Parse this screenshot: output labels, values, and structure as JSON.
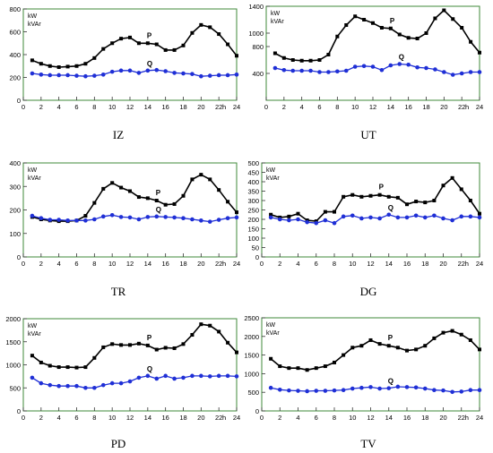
{
  "chart_data": [
    {
      "type": "line",
      "caption": "IZ",
      "yunit": [
        "kW",
        "kVAr"
      ],
      "x": [
        1,
        2,
        3,
        4,
        5,
        6,
        7,
        8,
        9,
        10,
        11,
        12,
        13,
        14,
        15,
        16,
        17,
        18,
        19,
        20,
        21,
        22,
        23,
        24
      ],
      "xticks": [
        0,
        2,
        4,
        6,
        8,
        10,
        12,
        14,
        16,
        18,
        20,
        22,
        24
      ],
      "xlim": [
        0,
        24
      ],
      "xunit": "h",
      "ylim": [
        0,
        800
      ],
      "yticks": [
        0,
        200,
        400,
        600,
        800
      ],
      "series": [
        {
          "name": "P",
          "marker": "square",
          "values": [
            350,
            320,
            300,
            290,
            295,
            300,
            320,
            370,
            450,
            500,
            540,
            550,
            500,
            500,
            490,
            440,
            440,
            480,
            590,
            660,
            640,
            580,
            490,
            390
          ]
        },
        {
          "name": "Q",
          "marker": "circle",
          "values": [
            235,
            225,
            220,
            220,
            220,
            215,
            210,
            215,
            225,
            250,
            260,
            260,
            240,
            260,
            265,
            255,
            240,
            235,
            230,
            210,
            215,
            220,
            220,
            225
          ]
        }
      ]
    },
    {
      "type": "line",
      "caption": "UT",
      "yunit": [
        "kW",
        "kVAr"
      ],
      "x": [
        1,
        2,
        3,
        4,
        5,
        6,
        7,
        8,
        9,
        10,
        11,
        12,
        13,
        14,
        15,
        16,
        17,
        18,
        19,
        20,
        21,
        22,
        23,
        24
      ],
      "xticks": [
        0,
        2,
        4,
        6,
        8,
        10,
        12,
        14,
        16,
        18,
        20,
        22,
        24
      ],
      "xlim": [
        0,
        24
      ],
      "xunit": "h",
      "ylim": [
        0,
        1400
      ],
      "yticks": [
        400,
        800,
        1000,
        1400
      ],
      "series": [
        {
          "name": "P",
          "marker": "square",
          "values": [
            700,
            630,
            600,
            590,
            590,
            600,
            680,
            950,
            1120,
            1250,
            1200,
            1150,
            1080,
            1070,
            980,
            930,
            920,
            1000,
            1220,
            1340,
            1210,
            1080,
            870,
            710
          ]
        },
        {
          "name": "Q",
          "marker": "circle",
          "values": [
            480,
            450,
            440,
            440,
            440,
            420,
            420,
            430,
            440,
            500,
            510,
            500,
            450,
            520,
            540,
            530,
            490,
            480,
            460,
            420,
            380,
            400,
            420,
            420
          ]
        }
      ]
    },
    {
      "type": "line",
      "caption": "TR",
      "yunit": [
        "kW",
        "kVAr"
      ],
      "x": [
        1,
        2,
        3,
        4,
        5,
        6,
        7,
        8,
        9,
        10,
        11,
        12,
        13,
        14,
        15,
        16,
        17,
        18,
        19,
        20,
        21,
        22,
        23,
        24
      ],
      "xticks": [
        0,
        2,
        4,
        6,
        8,
        10,
        12,
        14,
        16,
        18,
        20,
        22,
        24
      ],
      "xlim": [
        0,
        24
      ],
      "xunit": "h",
      "ylim": [
        0,
        400
      ],
      "yticks": [
        0,
        100,
        200,
        300,
        400
      ],
      "series": [
        {
          "name": "P",
          "marker": "square",
          "values": [
            170,
            160,
            155,
            152,
            152,
            155,
            175,
            230,
            290,
            315,
            295,
            280,
            255,
            250,
            240,
            222,
            225,
            260,
            330,
            350,
            330,
            285,
            235,
            190
          ]
        },
        {
          "name": "Q",
          "marker": "circle",
          "values": [
            175,
            165,
            158,
            158,
            155,
            155,
            155,
            160,
            172,
            178,
            170,
            168,
            160,
            170,
            172,
            170,
            168,
            165,
            160,
            155,
            150,
            158,
            165,
            168
          ]
        }
      ]
    },
    {
      "type": "line",
      "caption": "DG",
      "yunit": [
        "kW",
        "kVAr"
      ],
      "x": [
        1,
        2,
        3,
        4,
        5,
        6,
        7,
        8,
        9,
        10,
        11,
        12,
        13,
        14,
        15,
        16,
        17,
        18,
        19,
        20,
        21,
        22,
        23,
        24
      ],
      "xticks": [
        0,
        2,
        4,
        6,
        8,
        10,
        12,
        14,
        16,
        18,
        20,
        22,
        24
      ],
      "xlim": [
        0,
        24
      ],
      "xunit": "h",
      "ylim": [
        0,
        500
      ],
      "yticks": [
        0,
        50,
        100,
        150,
        200,
        250,
        300,
        350,
        400,
        450,
        500
      ],
      "series": [
        {
          "name": "P",
          "marker": "square",
          "values": [
            225,
            210,
            215,
            230,
            195,
            190,
            240,
            240,
            320,
            330,
            320,
            325,
            330,
            320,
            315,
            280,
            295,
            290,
            300,
            380,
            420,
            360,
            300,
            230
          ]
        },
        {
          "name": "Q",
          "marker": "circle",
          "values": [
            210,
            200,
            195,
            200,
            185,
            180,
            195,
            180,
            215,
            220,
            205,
            210,
            205,
            225,
            210,
            210,
            220,
            210,
            220,
            205,
            195,
            215,
            215,
            210
          ]
        }
      ]
    },
    {
      "type": "line",
      "caption": "PD",
      "yunit": [
        "kW",
        "kVAr"
      ],
      "x": [
        1,
        2,
        3,
        4,
        5,
        6,
        7,
        8,
        9,
        10,
        11,
        12,
        13,
        14,
        15,
        16,
        17,
        18,
        19,
        20,
        21,
        22,
        23,
        24
      ],
      "xticks": [
        0,
        2,
        4,
        6,
        8,
        10,
        12,
        14,
        16,
        18,
        20,
        22,
        24
      ],
      "xlim": [
        0,
        24
      ],
      "xunit": "h",
      "ylim": [
        0,
        2000
      ],
      "yticks": [
        0,
        500,
        1000,
        1500,
        2000
      ],
      "series": [
        {
          "name": "P",
          "marker": "square",
          "values": [
            1200,
            1050,
            980,
            950,
            950,
            940,
            950,
            1150,
            1380,
            1450,
            1430,
            1430,
            1460,
            1420,
            1330,
            1370,
            1360,
            1450,
            1650,
            1880,
            1850,
            1720,
            1480,
            1270
          ]
        },
        {
          "name": "Q",
          "marker": "circle",
          "values": [
            720,
            600,
            560,
            540,
            540,
            540,
            500,
            500,
            560,
            600,
            600,
            640,
            720,
            760,
            700,
            760,
            700,
            720,
            760,
            760,
            750,
            760,
            760,
            750
          ]
        }
      ]
    },
    {
      "type": "line",
      "caption": "TV",
      "yunit": [
        "kW",
        "kVAr"
      ],
      "x": [
        1,
        2,
        3,
        4,
        5,
        6,
        7,
        8,
        9,
        10,
        11,
        12,
        13,
        14,
        15,
        16,
        17,
        18,
        19,
        20,
        21,
        22,
        23,
        24
      ],
      "xticks": [
        0,
        2,
        4,
        6,
        8,
        10,
        12,
        14,
        16,
        18,
        20,
        22,
        24
      ],
      "xlim": [
        0,
        24
      ],
      "xunit": "h",
      "ylim": [
        0,
        2500
      ],
      "yticks": [
        0,
        500,
        1000,
        1500,
        2000,
        2500
      ],
      "series": [
        {
          "name": "P",
          "marker": "square",
          "values": [
            1400,
            1200,
            1150,
            1150,
            1100,
            1150,
            1200,
            1300,
            1500,
            1700,
            1750,
            1900,
            1800,
            1750,
            1700,
            1620,
            1650,
            1750,
            1950,
            2100,
            2150,
            2050,
            1900,
            1650
          ]
        },
        {
          "name": "Q",
          "marker": "circle",
          "values": [
            620,
            570,
            550,
            540,
            530,
            540,
            540,
            550,
            560,
            600,
            620,
            640,
            600,
            610,
            650,
            640,
            630,
            600,
            560,
            550,
            510,
            520,
            560,
            560
          ]
        }
      ]
    }
  ],
  "colors": {
    "P": "#000000",
    "Q": "#1f2fd6",
    "frame": "#3f8a3a"
  }
}
